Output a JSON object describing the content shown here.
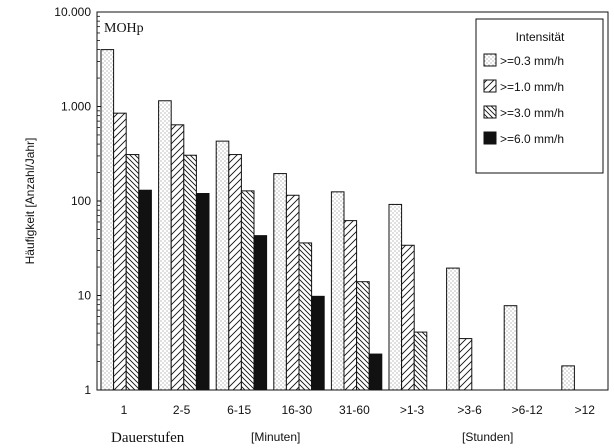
{
  "chart_data": {
    "type": "bar",
    "panel_label": "MOHp",
    "ylabel": "Häufigkeit [Anzahl/Jahr]",
    "xlabel_main": "Dauerstufen",
    "xlabel_minutes": "[Minuten]",
    "xlabel_hours": "[Stunden]",
    "yscale": "log",
    "ylim": [
      1,
      10000
    ],
    "yticks": [
      {
        "value": 10000,
        "label": "10.000"
      },
      {
        "value": 1000,
        "label": "1.000"
      },
      {
        "value": 100,
        "label": "100"
      },
      {
        "value": 10,
        "label": "10"
      },
      {
        "value": 1,
        "label": "1"
      }
    ],
    "categories": [
      "1",
      "2-5",
      "6-15",
      "16-30",
      "31-60",
      ">1-3",
      ">3-6",
      ">6-12",
      ">12"
    ],
    "legend_title": "Intensität",
    "legend_position": "top-right",
    "series": [
      {
        "name": ">=0.3 mm/h",
        "pattern": "dots",
        "values": [
          4000,
          1150,
          430,
          195,
          125,
          92,
          19.5,
          7.8,
          1.8
        ]
      },
      {
        "name": ">=1.0 mm/h",
        "pattern": "forward-hatch",
        "values": [
          850,
          640,
          310,
          115,
          62,
          34,
          3.5,
          null,
          null
        ]
      },
      {
        "name": ">=3.0 mm/h",
        "pattern": "back-hatch",
        "values": [
          310,
          305,
          128,
          36,
          14,
          4.1,
          null,
          null,
          null
        ]
      },
      {
        "name": ">=6.0 mm/h",
        "pattern": "solid",
        "values": [
          130,
          120,
          43,
          9.8,
          2.4,
          null,
          null,
          null,
          null
        ]
      }
    ],
    "colors": {
      "ink": "#111111",
      "dots": "#555555",
      "background": "#ffffff"
    }
  }
}
